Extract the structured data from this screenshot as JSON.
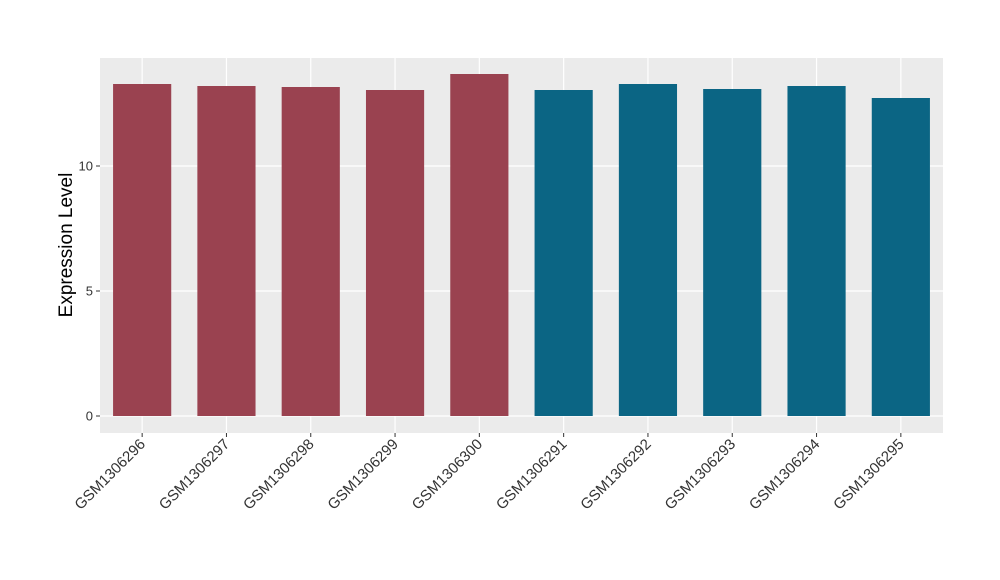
{
  "chart_data": {
    "type": "bar",
    "y_label": "Expression Level",
    "categories": [
      "GSM1306296",
      "GSM1306297",
      "GSM1306298",
      "GSM1306299",
      "GSM1306300",
      "GSM1306291",
      "GSM1306292",
      "GSM1306293",
      "GSM1306294",
      "GSM1306295"
    ],
    "values": [
      13.28,
      13.2,
      13.16,
      13.04,
      13.68,
      13.04,
      13.28,
      13.08,
      13.2,
      12.72
    ],
    "colors": [
      "#9a4250",
      "#9a4250",
      "#9a4250",
      "#9a4250",
      "#9a4250",
      "#0b6584",
      "#0b6584",
      "#0b6584",
      "#0b6584",
      "#0b6584"
    ],
    "ylim": [
      -0.68,
      14.32
    ],
    "yticks": [
      0,
      5,
      10
    ],
    "grid": true
  }
}
